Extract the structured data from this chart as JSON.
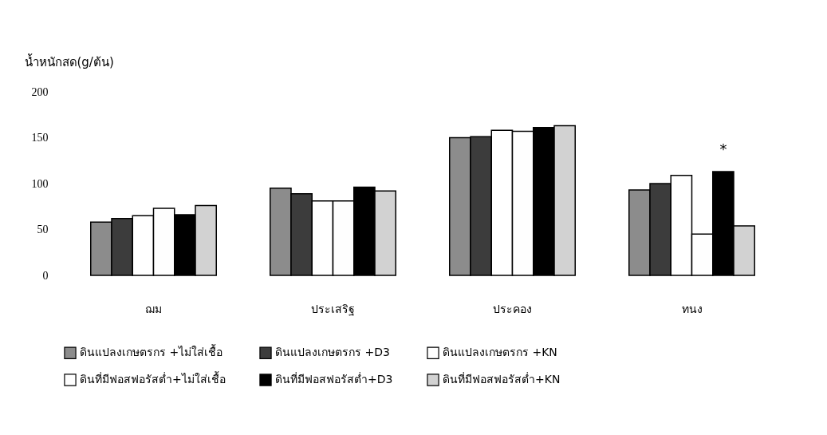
{
  "chart_data": {
    "type": "bar",
    "ylabel": "น้ำหนักสด(g/ต้น)",
    "categories": [
      "ฌม",
      "ประเสริฐ",
      "ประคอง",
      "ทนง"
    ],
    "series": [
      {
        "name": "ดินแปลงเกษตรกร +ไม่ใส่เชื้อ",
        "color": "#8c8c8c",
        "values": [
          58,
          95,
          150,
          93
        ]
      },
      {
        "name": "ดินแปลงเกษตรกร +D3",
        "color": "#3c3c3c",
        "values": [
          62,
          89,
          151,
          100
        ]
      },
      {
        "name": "ดินแปลงเกษตรกร +KN",
        "color": "#ffffff",
        "values": [
          65,
          81,
          158,
          109
        ]
      },
      {
        "name": "ดินที่มีฟอสฟอรัสต่ำ+ไม่ใส่เชื้อ",
        "color": "#fefefe",
        "values": [
          73,
          81,
          157,
          45
        ]
      },
      {
        "name": "ดินที่มีฟอสฟอรัสต่ำ+D3",
        "color": "#000000",
        "values": [
          66,
          96,
          161,
          113
        ]
      },
      {
        "name": "ดินที่มีฟอสฟอรัสต่ำ+KN",
        "color": "#d2d2d2",
        "values": [
          76,
          92,
          163,
          54
        ]
      }
    ],
    "ylim": [
      0,
      200
    ],
    "yticks": [
      0,
      50,
      100,
      150,
      200
    ],
    "grid": false,
    "legend": "bottom",
    "annotations": [
      "*"
    ]
  }
}
